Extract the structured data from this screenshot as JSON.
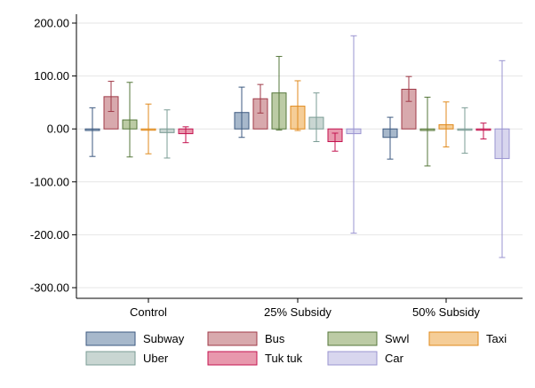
{
  "chart_data": {
    "type": "bar",
    "categories": [
      "Control",
      "25% Subsidy",
      "50% Subsidy"
    ],
    "ylim": [
      -300,
      200
    ],
    "yticks": [
      200,
      100,
      0,
      -100,
      -200,
      -300
    ],
    "ytick_labels": [
      "200.00",
      "100.00",
      "0.00",
      "-100.00",
      "-200.00",
      "-300.00"
    ],
    "grid": "horizontal",
    "legend_placement": "bottom",
    "series": [
      {
        "name": "Subway",
        "color": "#a7b8cb",
        "stroke": "#3d5a80",
        "values": [
          -3,
          31,
          -16
        ],
        "ci_low": [
          -52,
          -16,
          -57
        ],
        "ci_high": [
          40,
          79,
          22
        ]
      },
      {
        "name": "Bus",
        "color": "#d8a9ad",
        "stroke": "#a03a48",
        "values": [
          61,
          57,
          75
        ],
        "ci_low": [
          33,
          30,
          52
        ],
        "ci_high": [
          90,
          84,
          99
        ]
      },
      {
        "name": "Swvl",
        "color": "#bccba5",
        "stroke": "#56773b",
        "values": [
          17,
          68,
          -3
        ],
        "ci_low": [
          -53,
          -2,
          -70
        ],
        "ci_high": [
          88,
          137,
          60
        ]
      },
      {
        "name": "Taxi",
        "color": "#f5cd97",
        "stroke": "#e08a1c",
        "values": [
          0,
          43,
          8
        ],
        "ci_low": [
          -47,
          -3,
          -34
        ],
        "ci_high": [
          47,
          91,
          51
        ]
      },
      {
        "name": "Uber",
        "color": "#c9d6d2",
        "stroke": "#7b9c95",
        "values": [
          -7,
          22,
          -2
        ],
        "ci_low": [
          -55,
          -24,
          -46
        ],
        "ci_high": [
          36,
          68,
          40
        ]
      },
      {
        "name": "Tuk tuk",
        "color": "#e898ad",
        "stroke": "#c4134f",
        "values": [
          -9,
          -24,
          -2
        ],
        "ci_low": [
          -26,
          -42,
          -19
        ],
        "ci_high": [
          4,
          -8,
          11
        ]
      },
      {
        "name": "Car",
        "color": "#d8d6ee",
        "stroke": "#9a94d0",
        "values": [
          null,
          -9,
          -56
        ],
        "ci_low": [
          null,
          -197,
          -243
        ],
        "ci_high": [
          null,
          176,
          129
        ]
      }
    ]
  }
}
